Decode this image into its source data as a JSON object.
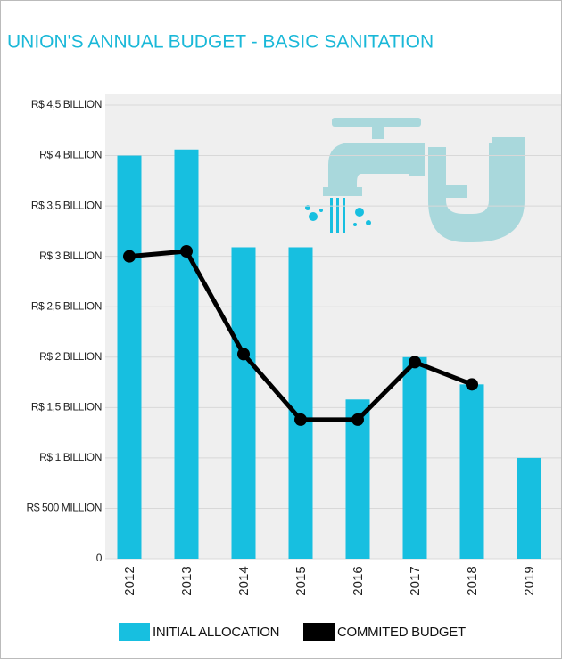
{
  "chart_data": {
    "type": "bar-line",
    "title": "UNION'S ANNUAL BUDGET - BASIC SANITATION",
    "categories": [
      "2012",
      "2013",
      "2014",
      "2015",
      "2016",
      "2017",
      "2018",
      "2019"
    ],
    "series": [
      {
        "name": "INITIAL ALLOCATION",
        "type": "bar",
        "color": "#17bfe0",
        "values": [
          4.0,
          4.06,
          3.09,
          3.09,
          1.58,
          2.0,
          1.73,
          1.0
        ]
      },
      {
        "name": "COMMITED BUDGET",
        "type": "line",
        "color": "#000000",
        "values": [
          3.0,
          3.05,
          2.03,
          1.38,
          1.38,
          1.95,
          1.73,
          null
        ]
      }
    ],
    "ylim": [
      0,
      4.5
    ],
    "yticks": [
      0,
      {
        "value": 0.5,
        "label": "R$ 500 MILLION"
      },
      {
        "value": 1,
        "label": "R$ 1 BILLION"
      },
      {
        "value": 1.5,
        "label": "R$ 1,5 BILLION"
      },
      {
        "value": 2,
        "label": "R$ 2 BILLION"
      },
      {
        "value": 2.5,
        "label": "R$ 2,5 BILLION"
      },
      {
        "value": 3,
        "label": "R$ 3 BILLION"
      },
      {
        "value": 3.5,
        "label": "R$ 3,5 BILLION"
      },
      {
        "value": 4,
        "label": "R$ 4 BILLION"
      },
      {
        "value": 4.5,
        "label": "R$ 4,5 BILLION"
      }
    ],
    "grid": true
  }
}
